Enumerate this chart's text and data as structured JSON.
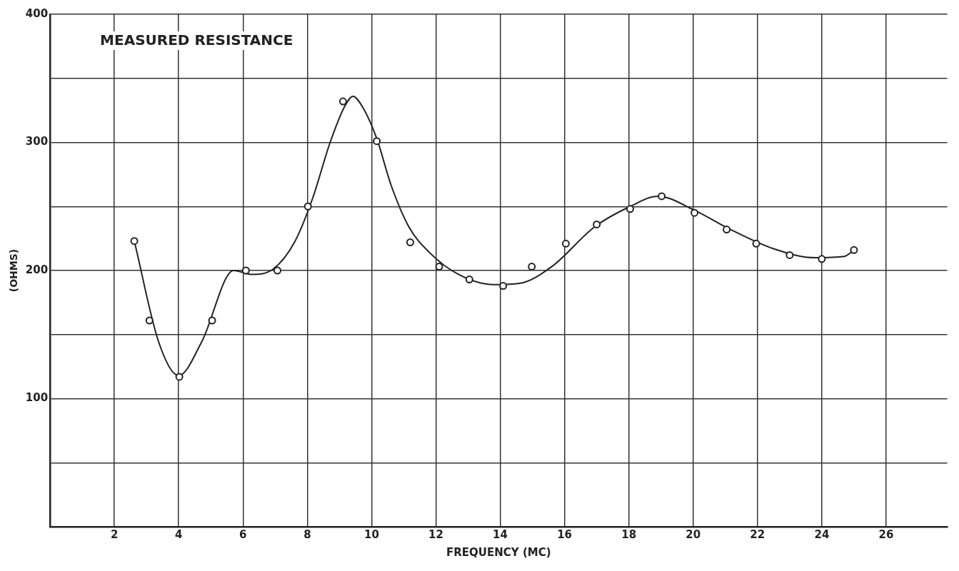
{
  "chart_data": {
    "type": "scatter",
    "xlabel": "FREQUENCY (MC)",
    "ylabel": "(OHMS)",
    "annotations": [
      "MEASURED RESISTANCE"
    ],
    "xlim": [
      0,
      27.9
    ],
    "xticks": [
      2,
      4,
      6,
      8,
      10,
      12,
      14,
      16,
      18,
      20,
      22,
      24,
      26
    ],
    "ylim": [
      0,
      400
    ],
    "yticks": [
      {
        "value": 50,
        "label": null
      },
      100,
      {
        "value": 150,
        "label": null
      },
      200,
      {
        "value": 250,
        "label": null
      },
      300,
      {
        "value": 350,
        "label": null
      },
      400
    ],
    "grid": true,
    "series": [
      {
        "type": "scatter",
        "marker": "circle",
        "color": "#222222",
        "x": [
          2.62,
          3.09,
          4.02,
          5.04,
          6.09,
          7.07,
          8.02,
          9.11,
          10.16,
          11.2,
          12.1,
          13.04,
          14.09,
          14.98,
          16.04,
          17.0,
          18.04,
          19.02,
          20.04,
          21.04,
          21.96,
          23.0,
          24.0,
          25.0
        ],
        "values": [
          223,
          161,
          117,
          161,
          200,
          200,
          250,
          332,
          301,
          222,
          203,
          193,
          188,
          203,
          221,
          236,
          248,
          258,
          245,
          232,
          221,
          212,
          209,
          216
        ]
      },
      {
        "type": "line",
        "marker": "none",
        "line_style": "solid",
        "color": "#222222",
        "x": [
          2.62,
          3.38,
          4.0,
          4.71,
          5.71,
          6.27,
          6.93,
          7.6,
          8.16,
          8.71,
          9.16,
          9.42,
          9.71,
          10.16,
          10.6,
          11.16,
          11.8,
          12.7,
          13.8,
          14.6,
          15.6,
          16.93,
          18.04,
          18.9,
          20.04,
          21.16,
          22.5,
          23.8,
          24.7,
          25.0
        ],
        "values": [
          223,
          144,
          118,
          144,
          200,
          197,
          201,
          222,
          256,
          300,
          328,
          336,
          328,
          303,
          267,
          234,
          214,
          197,
          189,
          190,
          203,
          234,
          250,
          258,
          247,
          232,
          217,
          210,
          211,
          216
        ]
      }
    ]
  }
}
